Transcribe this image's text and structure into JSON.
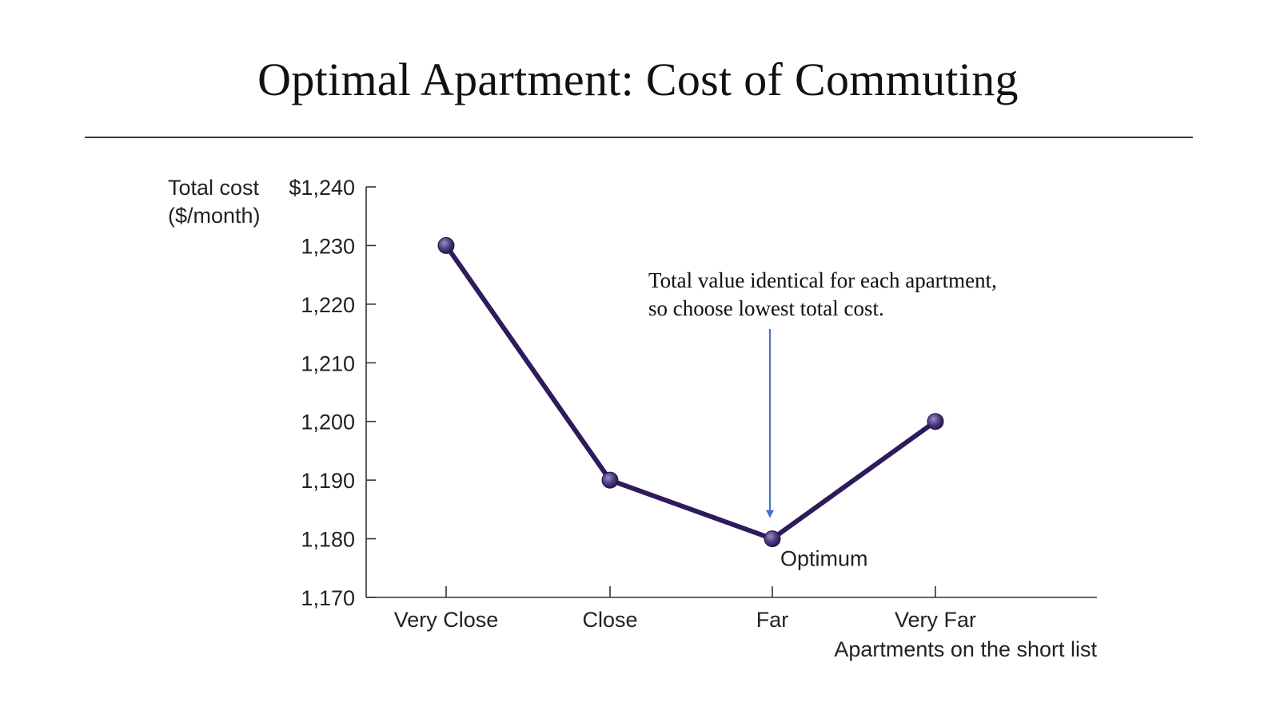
{
  "slide": {
    "title": "Optimal Apartment: Cost of Commuting"
  },
  "chart_data": {
    "type": "line",
    "categories": [
      "Very Close",
      "Close",
      "Far",
      "Very Far"
    ],
    "series": [
      {
        "values": [
          1230,
          1190,
          1180,
          1200
        ]
      }
    ],
    "ylabel_lines": [
      "Total cost",
      "($/month)"
    ],
    "xlabel": "Apartments on the short list",
    "ylim": [
      1170,
      1240
    ],
    "yticks": [
      1170,
      1180,
      1190,
      1200,
      1210,
      1220,
      1230,
      1240
    ],
    "ytick_labels": [
      "1,170",
      "1,180",
      "1,190",
      "1,200",
      "1,210",
      "1,220",
      "1,230",
      "$1,240"
    ],
    "grid": false,
    "annotations": {
      "optimum": {
        "category": "Far",
        "label": "Optimum"
      },
      "note_lines": [
        "Total value identical for each apartment,",
        "so choose lowest total cost."
      ]
    },
    "colors": {
      "line": "#2e1a5c",
      "marker": "#4a3a7a",
      "arrow": "#4472c4",
      "axis": "#333333"
    }
  }
}
